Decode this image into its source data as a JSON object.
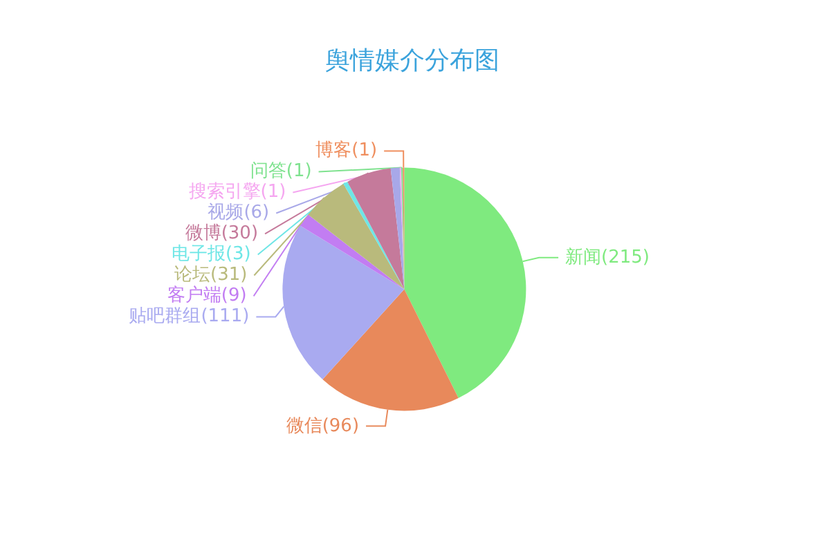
{
  "chart_data": {
    "type": "pie",
    "title": "舆情媒介分布图",
    "categories": [
      "新闻",
      "微信",
      "贴吧群组",
      "客户端",
      "论坛",
      "电子报",
      "微博",
      "视频",
      "搜索引擎",
      "问答",
      "博客"
    ],
    "values": [
      215,
      96,
      111,
      9,
      31,
      3,
      30,
      6,
      1,
      1,
      1
    ],
    "colors": [
      "#7fea7f",
      "#e8895b",
      "#a9aaf0",
      "#c27df2",
      "#b9ba7c",
      "#6ee6e6",
      "#c57a9b",
      "#a8a8e8",
      "#f5a6f0",
      "#7fe28f",
      "#ef8f5f"
    ],
    "value_labels": [
      "(215)",
      "(96)",
      "(111)",
      "(9)",
      "(31)",
      "(3)",
      "(30)",
      "(6)",
      "(1)",
      "(1)",
      "(1)"
    ],
    "legend": false
  }
}
